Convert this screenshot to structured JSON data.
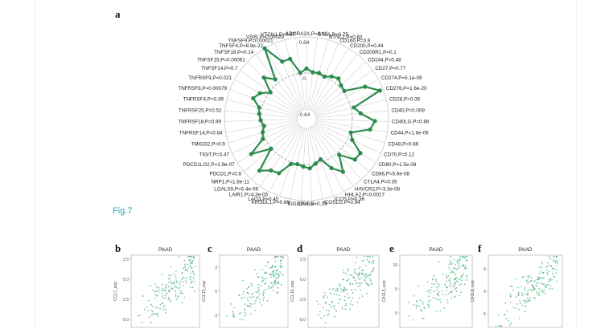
{
  "figure": {
    "panel_a": "a",
    "fig_caption": "Fig.7",
    "panels_small": [
      "b",
      "c",
      "d",
      "e",
      "f"
    ]
  },
  "chart_data": [
    {
      "type": "radar",
      "panel": "a",
      "color": "#2e8b4e",
      "radial_labels": [
        "0.64",
        "0",
        "-0.64"
      ],
      "rlim": [
        -0.64,
        0.64
      ],
      "categories": [
        "ADORA2A,P=0.18",
        "BTLA,P=0.75",
        "BTNL2,P=0.83",
        "CD160,P=0.9",
        "CD200,P=0.44",
        "CD200R1,P=0.1",
        "CD244,P=0.48",
        "CD27,P=0.77",
        "CD274,P=5.1e-09",
        "CD276,P=1.6e-20",
        "CD28,P=0.35",
        "CD40,P=0.009",
        "CD40LG,P=0.88",
        "CD44,P=1.6e-09",
        "CD48,P=0.86",
        "CD70,P=0.12",
        "CD80,P=1.5e-08",
        "CD86,P=5.6e-08",
        "CTLA4,P=0.35",
        "HAVCR2,P=3.3e-08",
        "HHLA2,P=0.0017",
        "ICOS,P=0.36",
        "ICOSLG,P=0.94",
        "IDO1,P=0.23",
        "IDO2,P=0.5",
        "KIR3DL1,P=0.86",
        "LAG3,P=0.45",
        "LAIR1,P=4.3e-05",
        "LGALS9,P=5.4e-06",
        "NRP1,P=1.8e-11",
        "PDCD1,P=0.8",
        "PDCD1LG2,P=1.9e-07",
        "TIGIT,P=0.47",
        "TMIGD2,P=0.9",
        "TNFRSF14,P=0.84",
        "TNFRSF18,P=0.99",
        "TNFRSF25,P=0.52",
        "TNFRSF4,P=0.39",
        "TNFRSF8,P=0.00079",
        "TNFRSF9,P=0.021",
        "TNFSF14,P=0.7",
        "TNFSF15,P=0.00061",
        "TNFSF18,P=0.14",
        "TNFSF4,P=8.9e-22",
        "TNFSF9,P=0.00021",
        "VSIR,P=0.00029",
        "VTCN1,P=0.87"
      ],
      "values": [
        0.08,
        0.02,
        0.03,
        0.0,
        0.06,
        0.1,
        0.04,
        0.02,
        0.37,
        0.58,
        0.05,
        0.15,
        0.4,
        0.33,
        0.01,
        0.08,
        0.32,
        0.31,
        0.05,
        0.33,
        0.17,
        -0.05,
        0.0,
        0.07,
        0.04,
        0.01,
        0.04,
        0.27,
        0.3,
        0.43,
        0.01,
        0.35,
        0.04,
        0.0,
        -0.05,
        0.0,
        0.03,
        0.05,
        0.2,
        0.13,
        -0.02,
        0.24,
        0.08,
        0.64,
        0.29,
        0.29,
        0.01
      ]
    },
    {
      "type": "scatter",
      "panel": "b",
      "title": "PAAD",
      "ylabel": "CCL7_exp",
      "yticks": [
        "2.5",
        "0.0",
        "-2.5",
        "-5.0"
      ],
      "ylim": [
        -6,
        3
      ],
      "color": "#5cc28f"
    },
    {
      "type": "scatter",
      "panel": "c",
      "title": "PAAD",
      "ylabel": "CCL13_exp",
      "yticks": [
        "3",
        "0",
        "-3"
      ],
      "ylim": [
        -4.5,
        4.5
      ],
      "color": "#5cc28f"
    },
    {
      "type": "scatter",
      "panel": "d",
      "title": "PAAD",
      "ylabel": "CCL15_exp",
      "yticks": [
        "2.5",
        "0.0",
        "-2.5",
        "-5.0"
      ],
      "ylim": [
        -6,
        3
      ],
      "color": "#5cc28f"
    },
    {
      "type": "scatter",
      "panel": "e",
      "title": "PAAD",
      "ylabel": "CXCL5_exp",
      "yticks": [
        "10",
        "5",
        "0"
      ],
      "ylim": [
        -3,
        12
      ],
      "color": "#5cc28f"
    },
    {
      "type": "scatter",
      "panel": "f",
      "title": "PAAD",
      "ylabel": "CXCL8_exp",
      "yticks": [
        "5",
        "0",
        "-5"
      ],
      "ylim": [
        -8,
        8
      ],
      "color": "#5cc28f"
    }
  ]
}
